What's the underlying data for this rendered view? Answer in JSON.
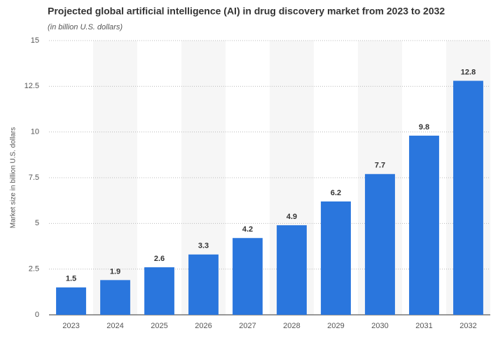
{
  "chart_data": {
    "type": "bar",
    "title": "Projected global artificial intelligence (AI) in drug discovery market from 2023 to 2032",
    "subtitle": "(in billion U.S. dollars)",
    "y_label": "Market size in billion U.S. dollars",
    "categories": [
      "2023",
      "2024",
      "2025",
      "2026",
      "2027",
      "2028",
      "2029",
      "2030",
      "2031",
      "2032"
    ],
    "values": [
      1.5,
      1.9,
      2.6,
      3.3,
      4.2,
      4.9,
      6.2,
      7.7,
      9.8,
      12.8
    ],
    "color": "#2a76dd",
    "ylim": [
      0,
      15
    ],
    "yticks": [
      0,
      2.5,
      5,
      7.5,
      10,
      12.5,
      15
    ],
    "grid": true
  }
}
